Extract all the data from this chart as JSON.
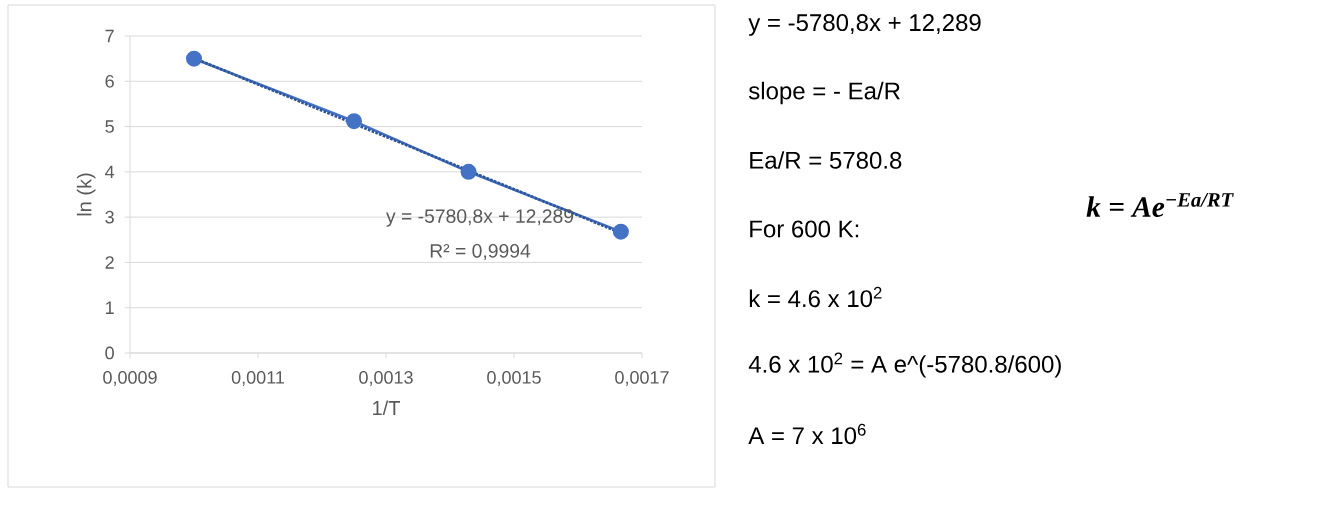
{
  "chart_data": {
    "type": "line",
    "xlabel": "1/T",
    "ylabel": "ln (k)",
    "xlim": [
      0.0009,
      0.0017
    ],
    "ylim": [
      0,
      7
    ],
    "xticks": [
      {
        "value": 0.0009,
        "label": "0,0009"
      },
      {
        "value": 0.0011,
        "label": "0,0011"
      },
      {
        "value": 0.0013,
        "label": "0,0013"
      },
      {
        "value": 0.0015,
        "label": "0,0015"
      },
      {
        "value": 0.0017,
        "label": "0,0017"
      }
    ],
    "yticks": [
      0,
      1,
      2,
      3,
      4,
      5,
      6,
      7
    ],
    "grid": "y",
    "series": [
      {
        "color": "#4472c4",
        "marker": "circle",
        "line_style": "solid",
        "x": [
          0.001,
          0.00125,
          0.001429,
          0.001667
        ],
        "values": [
          6.5,
          5.12,
          4.0,
          2.68
        ]
      },
      {
        "color": "#2f5597",
        "marker": "none",
        "line_style": "dotted",
        "x": [
          0.001,
          0.001667
        ],
        "values": [
          6.51,
          2.65
        ]
      }
    ],
    "annotations": [
      "y = -5780,8x + 12,289",
      "R² = 0,9994",
      "y = -5780,8x + 12,289",
      "slope = - Ea/R",
      "Ea/R = 5780.8",
      "For 600 K:",
      "k = 4.6 x 10$^{2}$",
      "4.6 x 10$^{2}$ = A e^(-5780.8/600)",
      "A = 7 x  10$^{6}$",
      "k = Ae$^{−Ea/RT}$"
    ]
  }
}
